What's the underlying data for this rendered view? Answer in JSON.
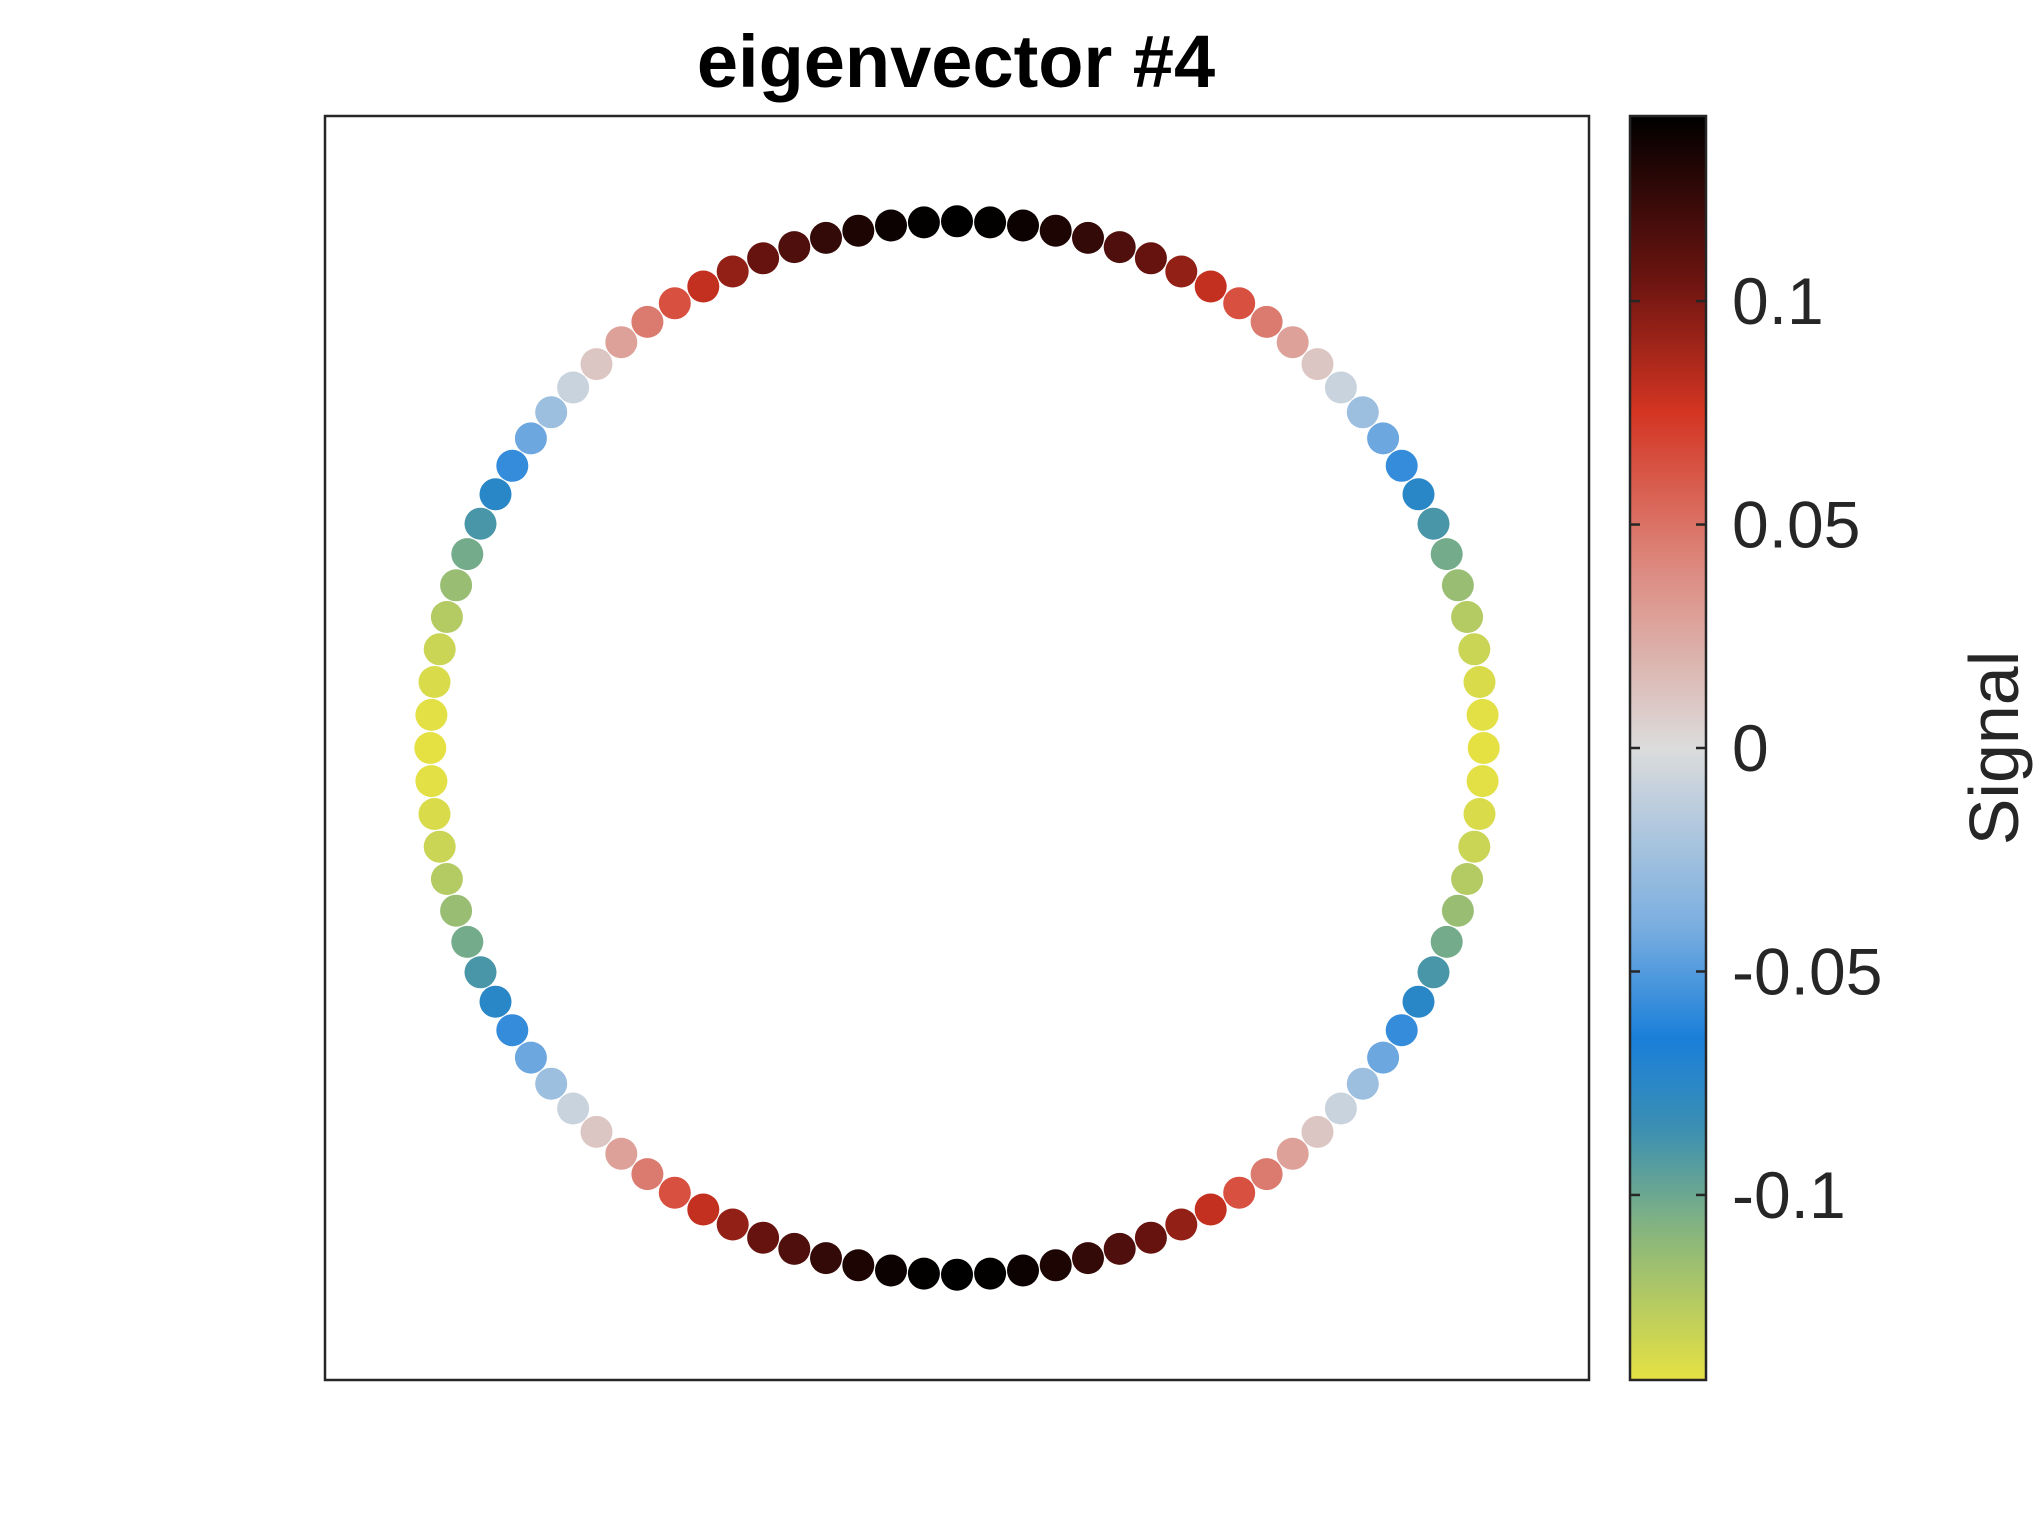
{
  "chart_data": {
    "type": "scatter",
    "title": "eigenvector #4",
    "xlabel": "",
    "ylabel": "",
    "grid": false,
    "legend": "none",
    "n_nodes": 100,
    "node_layout": "ring",
    "x": [
      1.0,
      0.998,
      0.9921,
      0.9823,
      0.9686,
      0.9511,
      0.9298,
      0.9048,
      0.8763,
      0.8443,
      0.809,
      0.7705,
      0.729,
      0.6845,
      0.6374,
      0.5878,
      0.5358,
      0.4818,
      0.4258,
      0.3681,
      0.309,
      0.2487,
      0.1874,
      0.1253,
      0.0628,
      0.0,
      -0.0628,
      -0.1253,
      -0.1874,
      -0.2487,
      -0.309,
      -0.3681,
      -0.4258,
      -0.4818,
      -0.5358,
      -0.5878,
      -0.6374,
      -0.6845,
      -0.729,
      -0.7705,
      -0.809,
      -0.8443,
      -0.8763,
      -0.9048,
      -0.9298,
      -0.9511,
      -0.9686,
      -0.9823,
      -0.9921,
      -0.998,
      -1.0,
      -0.998,
      -0.9921,
      -0.9823,
      -0.9686,
      -0.9511,
      -0.9298,
      -0.9048,
      -0.8763,
      -0.8443,
      -0.809,
      -0.7705,
      -0.729,
      -0.6845,
      -0.6374,
      -0.5878,
      -0.5358,
      -0.4818,
      -0.4258,
      -0.3681,
      -0.309,
      -0.2487,
      -0.1874,
      -0.1253,
      -0.0628,
      0.0,
      0.0628,
      0.1253,
      0.1874,
      0.2487,
      0.309,
      0.3681,
      0.4258,
      0.4818,
      0.5358,
      0.5878,
      0.6374,
      0.6845,
      0.729,
      0.7705,
      0.809,
      0.8443,
      0.8763,
      0.9048,
      0.9298,
      0.9511,
      0.9686,
      0.9823,
      0.9921,
      0.998
    ],
    "y": [
      0.0,
      0.0628,
      0.1253,
      0.1874,
      0.2487,
      0.309,
      0.3681,
      0.4258,
      0.4818,
      0.5358,
      0.5878,
      0.6374,
      0.6845,
      0.729,
      0.7705,
      0.809,
      0.8443,
      0.8763,
      0.9048,
      0.9298,
      0.9511,
      0.9686,
      0.9823,
      0.9921,
      0.998,
      1.0,
      0.998,
      0.9921,
      0.9823,
      0.9686,
      0.9511,
      0.9298,
      0.9048,
      0.8763,
      0.8443,
      0.809,
      0.7705,
      0.729,
      0.6845,
      0.6374,
      0.5878,
      0.5358,
      0.4818,
      0.4258,
      0.3681,
      0.309,
      0.2487,
      0.1874,
      0.1253,
      0.0628,
      0.0,
      -0.0628,
      -0.1253,
      -0.1874,
      -0.2487,
      -0.309,
      -0.3681,
      -0.4258,
      -0.4818,
      -0.5358,
      -0.5878,
      -0.6374,
      -0.6845,
      -0.729,
      -0.7705,
      -0.809,
      -0.8443,
      -0.8763,
      -0.9048,
      -0.9298,
      -0.9511,
      -0.9686,
      -0.9823,
      -0.9921,
      -0.998,
      -1.0,
      -0.998,
      -0.9921,
      -0.9823,
      -0.9686,
      -0.9511,
      -0.9298,
      -0.9048,
      -0.8763,
      -0.8443,
      -0.809,
      -0.7705,
      -0.729,
      -0.6845,
      -0.6374,
      -0.5878,
      -0.5358,
      -0.4818,
      -0.4258,
      -0.3681,
      -0.309,
      -0.2487,
      -0.1874,
      -0.1253,
      -0.0628
    ],
    "signal": [
      -0.1414,
      -0.1403,
      -0.1369,
      -0.1314,
      -0.1237,
      -0.1141,
      -0.1025,
      -0.0892,
      -0.0744,
      -0.0581,
      -0.0437,
      -0.0261,
      -0.0079,
      0.0105,
      0.0288,
      0.0467,
      0.0637,
      0.0796,
      0.094,
      0.1068,
      0.1144,
      0.1237,
      0.1314,
      0.1369,
      0.1403,
      0.1414,
      0.1403,
      0.1369,
      0.1314,
      0.1237,
      0.1144,
      0.1068,
      0.094,
      0.0796,
      0.0637,
      0.0467,
      0.0288,
      0.0105,
      -0.0079,
      -0.0261,
      -0.0437,
      -0.0581,
      -0.0744,
      -0.0892,
      -0.1025,
      -0.1141,
      -0.1237,
      -0.1314,
      -0.1369,
      -0.1403,
      -0.1414,
      -0.1403,
      -0.1369,
      -0.1314,
      -0.1237,
      -0.1141,
      -0.1025,
      -0.0892,
      -0.0744,
      -0.0581,
      -0.0437,
      -0.0261,
      -0.0079,
      0.0105,
      0.0288,
      0.0467,
      0.0637,
      0.0796,
      0.094,
      0.1068,
      0.1144,
      0.1237,
      0.1314,
      0.1369,
      0.1403,
      0.1414,
      0.1403,
      0.1369,
      0.1314,
      0.1237,
      0.1144,
      0.1068,
      0.094,
      0.0796,
      0.0637,
      0.0467,
      0.0288,
      0.0105,
      -0.0079,
      -0.0261,
      -0.0437,
      -0.0581,
      -0.0744,
      -0.0892,
      -0.1025,
      -0.1141,
      -0.1237,
      -0.1314,
      -0.1369,
      -0.1403
    ],
    "xlim": [
      -1.2,
      1.2
    ],
    "ylim": [
      -1.2,
      1.2
    ],
    "colorbar": {
      "label": "Signal",
      "clim": [
        -0.1414,
        0.1414
      ],
      "ticks": [
        0.1,
        0.05,
        0,
        -0.05,
        -0.1
      ],
      "tick_labels": [
        "0.1",
        "0.05",
        "0",
        "-0.05",
        "-0.1"
      ],
      "colormap_stops": [
        {
          "value": -0.1414,
          "color": "#e6e143"
        },
        {
          "value": -0.11,
          "color": "#8db87a"
        },
        {
          "value": -0.085,
          "color": "#3b8fb3"
        },
        {
          "value": -0.065,
          "color": "#1a7fd9"
        },
        {
          "value": -0.04,
          "color": "#7aaee0"
        },
        {
          "value": 0.0,
          "color": "#dcdcdc"
        },
        {
          "value": 0.04,
          "color": "#dd8a80"
        },
        {
          "value": 0.075,
          "color": "#d43522"
        },
        {
          "value": 0.105,
          "color": "#6b1410"
        },
        {
          "value": 0.1414,
          "color": "#000000"
        }
      ]
    }
  }
}
